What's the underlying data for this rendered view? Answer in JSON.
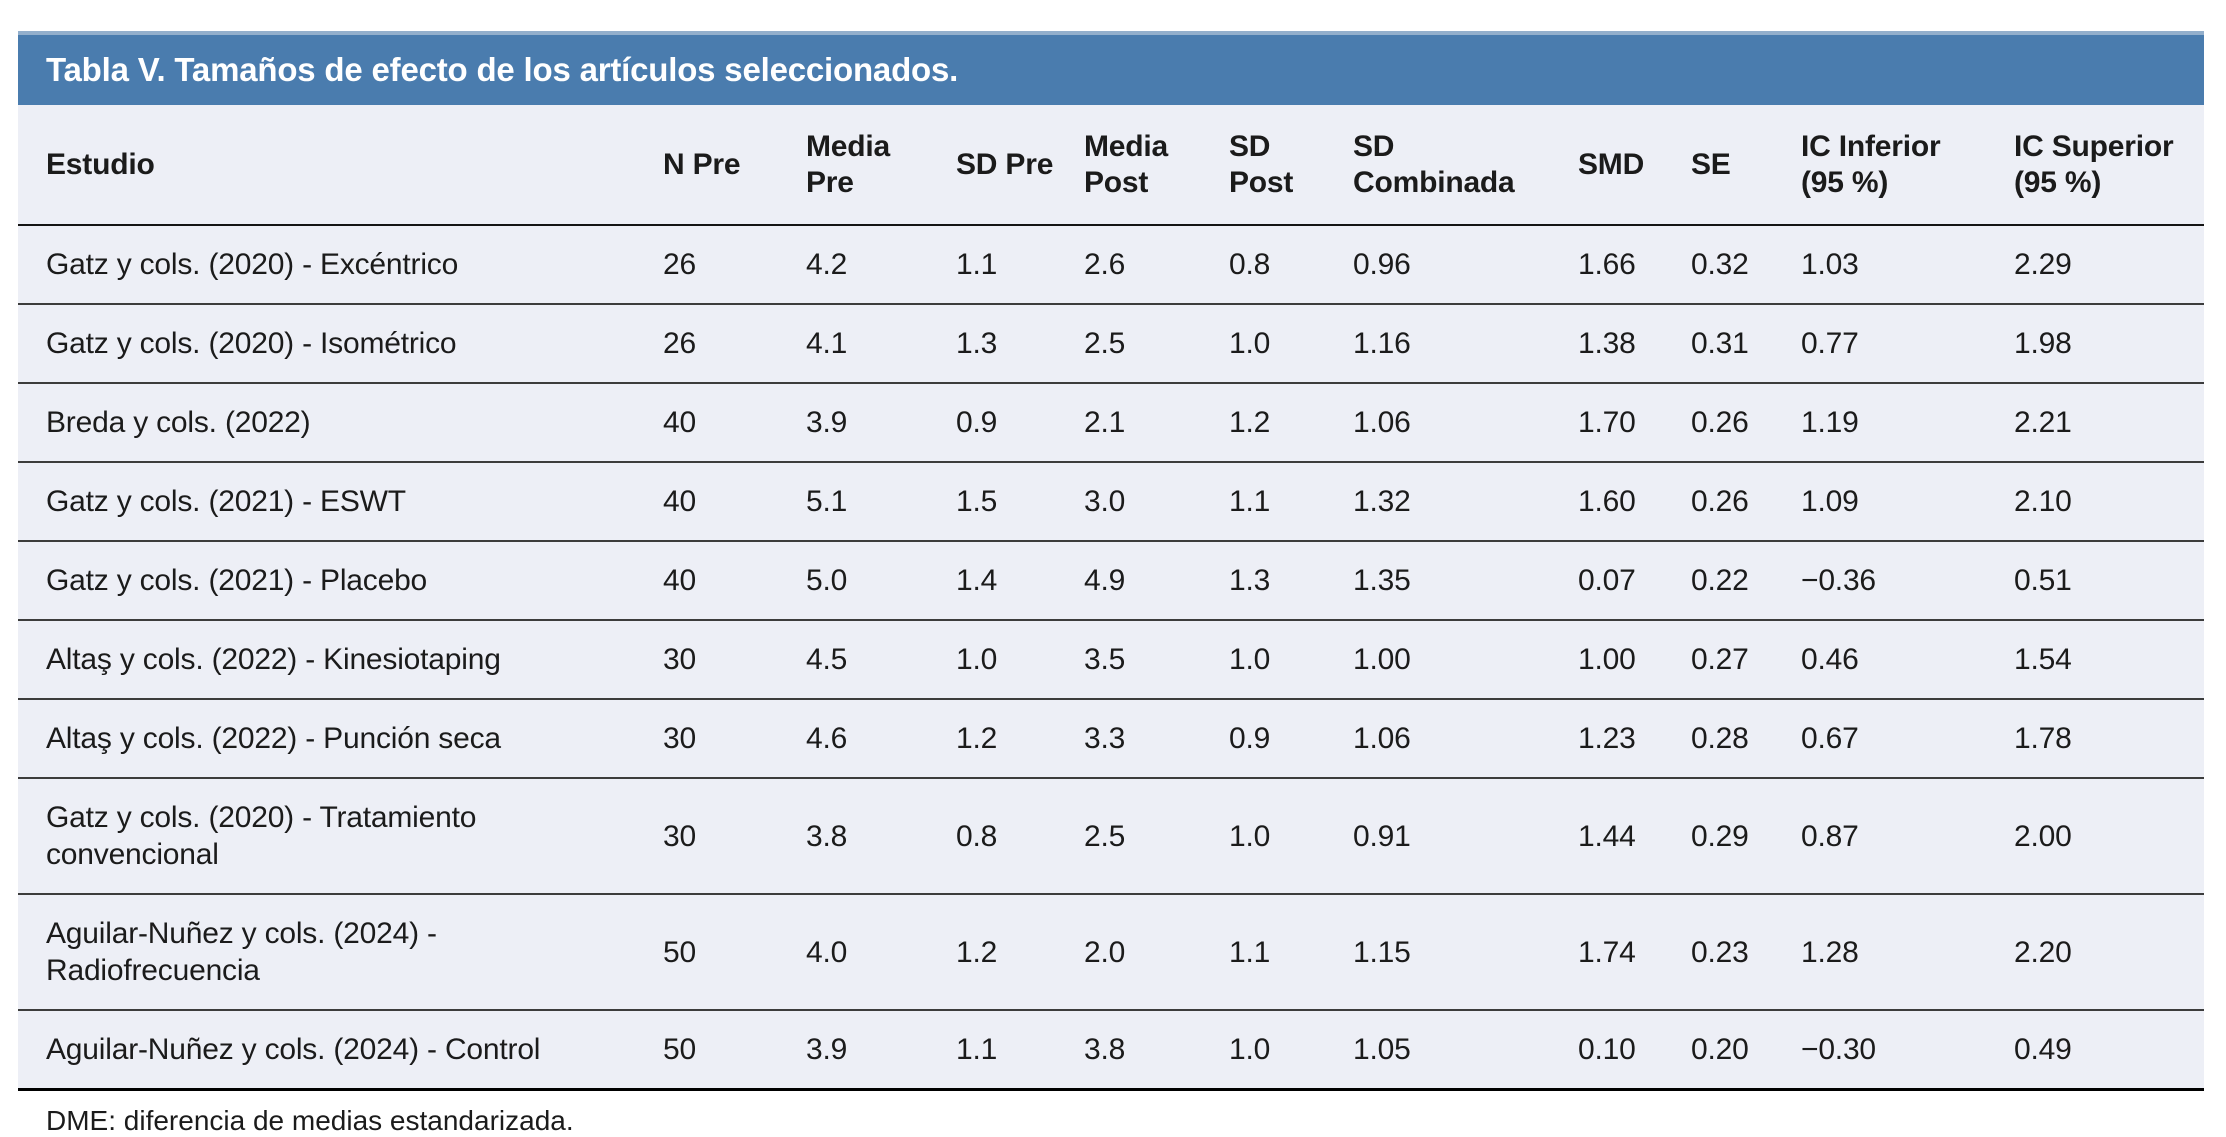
{
  "table": {
    "title": "Tabla V. Tamaños de efecto de los artículos seleccionados.",
    "columns": [
      "Estudio",
      "N Pre",
      "Media\nPre",
      "SD Pre",
      "Media\nPost",
      "SD\nPost",
      "SD\nCombinada",
      "SMD",
      "SE",
      "IC Inferior\n(95 %)",
      "IC Superior\n(95 %)"
    ],
    "rows": [
      {
        "study": "Gatz y cols. (2020) - Excéntrico",
        "values": [
          "26",
          "4.2",
          "1.1",
          "2.6",
          "0.8",
          "0.96",
          "1.66",
          "0.32",
          "1.03",
          "2.29"
        ]
      },
      {
        "study": "Gatz y cols. (2020) - Isométrico",
        "values": [
          "26",
          "4.1",
          "1.3",
          "2.5",
          "1.0",
          "1.16",
          "1.38",
          "0.31",
          "0.77",
          "1.98"
        ]
      },
      {
        "study": "Breda y cols. (2022)",
        "values": [
          "40",
          "3.9",
          "0.9",
          "2.1",
          "1.2",
          "1.06",
          "1.70",
          "0.26",
          "1.19",
          "2.21"
        ]
      },
      {
        "study": "Gatz y cols. (2021) - ESWT",
        "values": [
          "40",
          "5.1",
          "1.5",
          "3.0",
          "1.1",
          "1.32",
          "1.60",
          "0.26",
          "1.09",
          "2.10"
        ]
      },
      {
        "study": "Gatz y cols. (2021) - Placebo",
        "values": [
          "40",
          "5.0",
          "1.4",
          "4.9",
          "1.3",
          "1.35",
          "0.07",
          "0.22",
          "−0.36",
          "0.51"
        ]
      },
      {
        "study": "Altaş y cols. (2022) - Kinesiotaping",
        "values": [
          "30",
          "4.5",
          "1.0",
          "3.5",
          "1.0",
          "1.00",
          "1.00",
          "0.27",
          "0.46",
          "1.54"
        ]
      },
      {
        "study": "Altaş y cols. (2022) - Punción seca",
        "values": [
          "30",
          "4.6",
          "1.2",
          "3.3",
          "0.9",
          "1.06",
          "1.23",
          "0.28",
          "0.67",
          "1.78"
        ]
      },
      {
        "study": "Gatz y cols. (2020) - Tratamiento convencional",
        "values": [
          "30",
          "3.8",
          "0.8",
          "2.5",
          "1.0",
          "0.91",
          "1.44",
          "0.29",
          "0.87",
          "2.00"
        ]
      },
      {
        "study": "Aguilar-Nuñez y cols. (2024) - Radiofrecuencia",
        "values": [
          "50",
          "4.0",
          "1.2",
          "2.0",
          "1.1",
          "1.15",
          "1.74",
          "0.23",
          "1.28",
          "2.20"
        ]
      },
      {
        "study": "Aguilar-Nuñez y cols. (2024) - Control",
        "values": [
          "50",
          "3.9",
          "1.1",
          "3.8",
          "1.0",
          "1.05",
          "0.10",
          "0.20",
          "−0.30",
          "0.49"
        ]
      }
    ],
    "footnote": "DME: diferencia de medias estandarizada."
  },
  "colors": {
    "title_bar_background": "#4a7cae",
    "title_bar_top_edge": "#93afcc",
    "title_text": "#ffffff",
    "table_background": "#edeff6",
    "body_text": "#1b1b1b",
    "row_divider": "#3c3c3c",
    "header_underline": "#141414",
    "table_bottom_border": "#000000"
  }
}
